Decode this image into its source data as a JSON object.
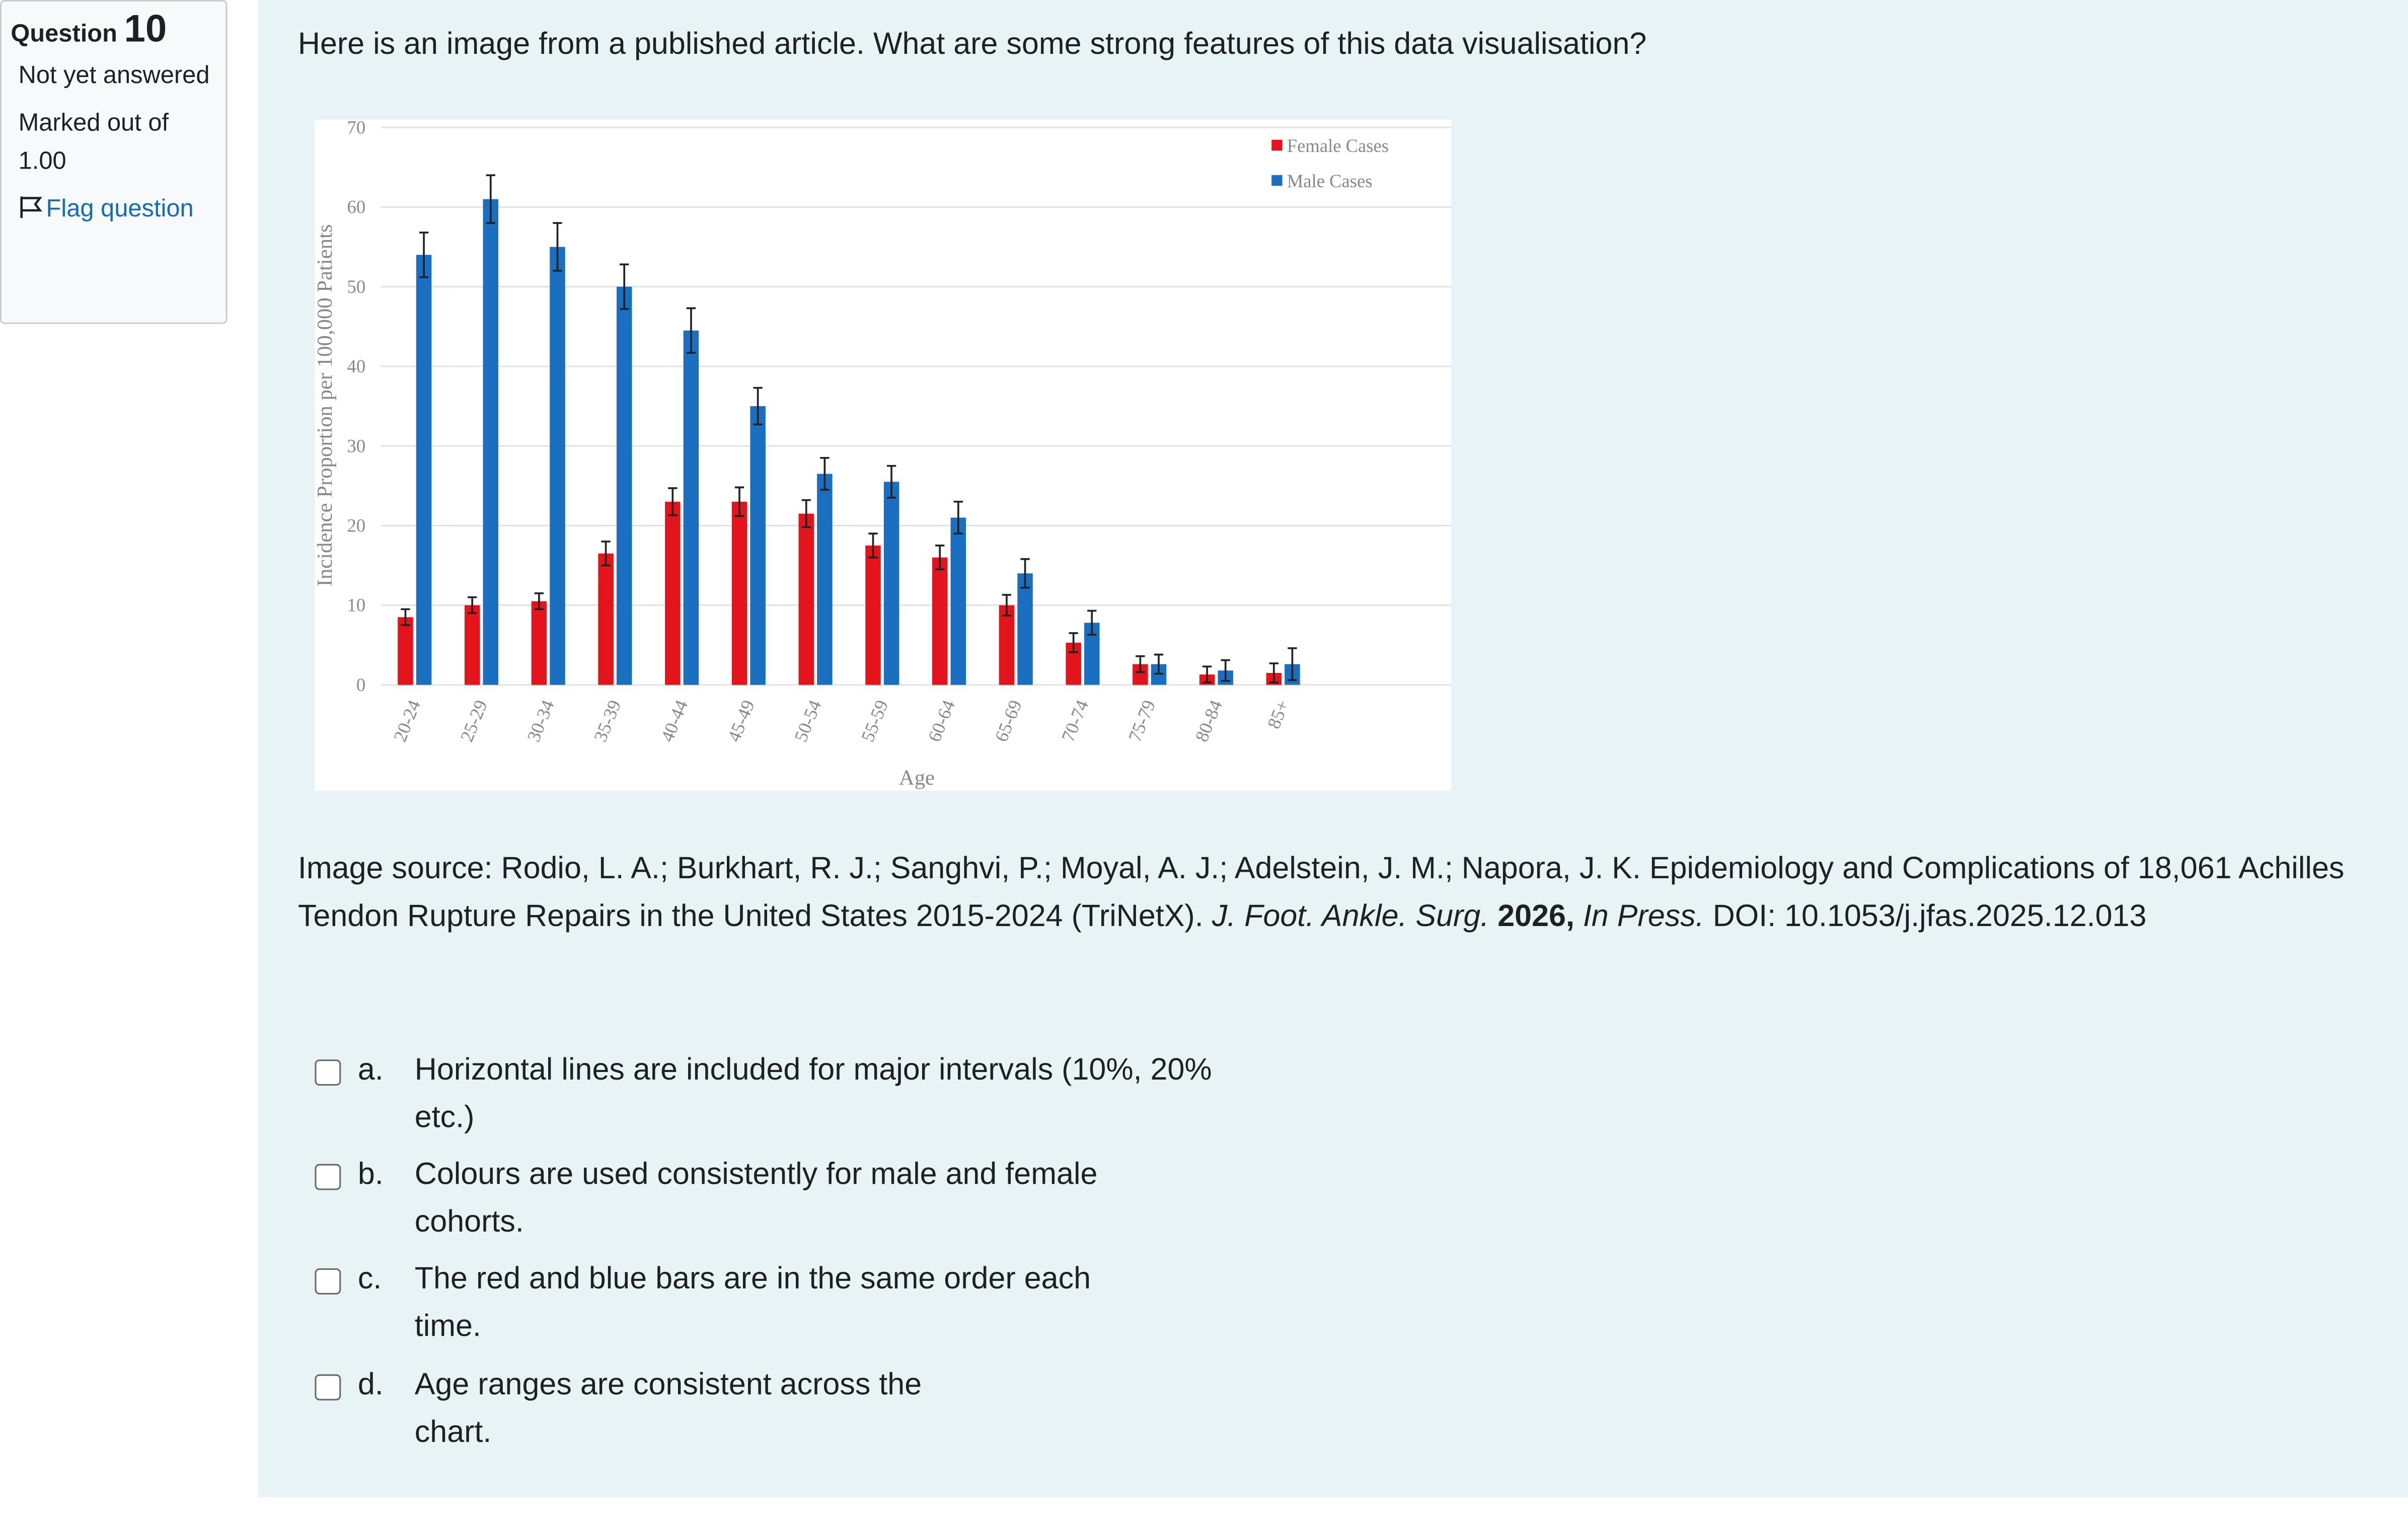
{
  "quiz": {
    "label": "Question",
    "number": "10",
    "status": "Not yet answered",
    "marked": "Marked out of 1.00",
    "flag": "Flag question",
    "prompt": "Here is an image from a published article. What are some strong features of this data visualisation?",
    "source": {
      "citation": "Image source: Rodio, L. A.; Burkhart, R. J.; Sanghvi, P.; Moyal, A. J.; Adelstein, J. M.; Napora, J. K. Epidemiology and Complications of 18,061 Achilles Tendon Rupture Repairs in the United States 2015-2024 (TriNetX).",
      "journal": "J. Foot. Ankle. Surg.",
      "year": "2026,",
      "status": "In Press.",
      "doi": "DOI: 10.1053/j.jfas.2025.12.013"
    },
    "options": [
      {
        "letter": "a.",
        "text": "Horizontal lines are included for major intervals (10%, 20% etc.)"
      },
      {
        "letter": "b.",
        "text": "Colours are used consistently for male and female cohorts."
      },
      {
        "letter": "c.",
        "text": "The red and blue bars are in the same order each time."
      },
      {
        "letter": "d.",
        "text": "Age ranges are consistent across the chart."
      }
    ]
  },
  "chart_data": {
    "type": "bar",
    "x_label": "Age",
    "y_label": "Incidence Proportion per 100,000 Patients",
    "categories": [
      "20-24",
      "25-29",
      "30-34",
      "35-39",
      "40-44",
      "45-49",
      "50-54",
      "55-59",
      "60-64",
      "65-69",
      "70-74",
      "75-79",
      "80-84",
      "85+"
    ],
    "series": [
      {
        "name": "Female Cases",
        "color": "#e3141c",
        "values": [
          8.5,
          10,
          10.5,
          16.5,
          23,
          23,
          21.5,
          17.5,
          16,
          10,
          5.3,
          2.6,
          1.3,
          1.5
        ],
        "errors": [
          1,
          1,
          1,
          1.5,
          1.7,
          1.8,
          1.7,
          1.5,
          1.5,
          1.3,
          1.2,
          1,
          1,
          1.2
        ]
      },
      {
        "name": "Male Cases",
        "color": "#1a6fc0",
        "values": [
          54,
          61,
          55,
          50,
          44.5,
          35,
          26.5,
          25.5,
          21,
          14,
          7.8,
          2.6,
          1.8,
          2.6
        ],
        "errors": [
          2.8,
          3,
          3,
          2.8,
          2.8,
          2.3,
          2,
          2,
          2,
          1.8,
          1.5,
          1.2,
          1.3,
          2
        ]
      }
    ],
    "ylim": [
      0,
      70
    ],
    "yticks": [
      0,
      10,
      20,
      30,
      40,
      50,
      60,
      70
    ],
    "grid": true,
    "legend": "top-right"
  }
}
